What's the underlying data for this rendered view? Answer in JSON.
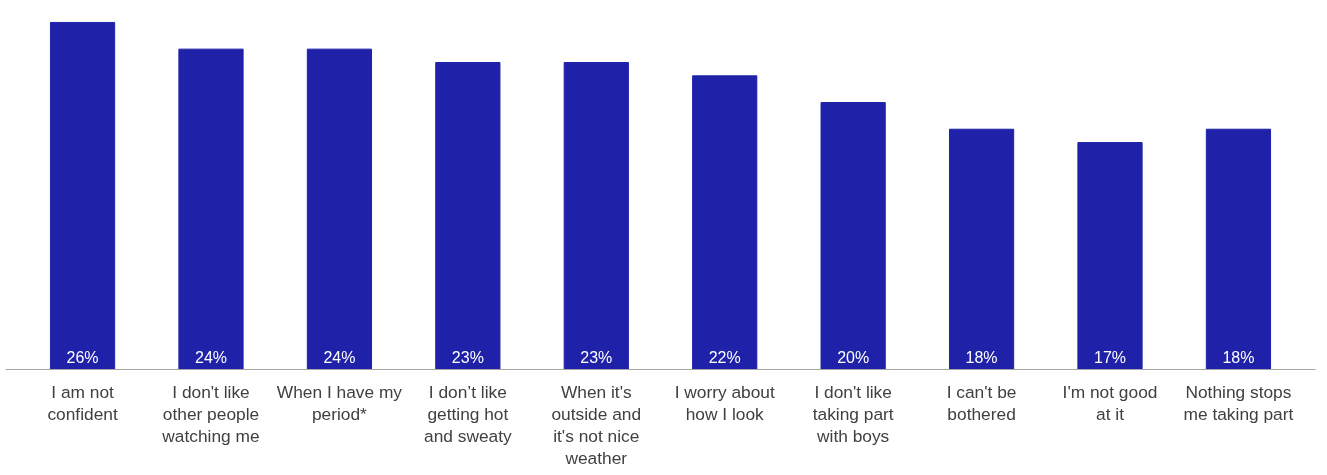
{
  "chart_data": {
    "type": "bar",
    "categories": [
      "I am not confident",
      "I don't like other people watching me",
      "When I have my period*",
      "I don’t like getting hot and sweaty",
      "When it's outside and it's not nice weather",
      "I worry about how I look",
      "I don't like taking part with boys",
      "I can't be bothered",
      "I'm not good at it",
      "Nothing stops me taking part"
    ],
    "values": [
      26,
      24,
      24,
      23,
      23,
      22,
      20,
      18,
      17,
      18
    ],
    "value_labels": [
      "26%",
      "24%",
      "24%",
      "23%",
      "23%",
      "22%",
      "20%",
      "18%",
      "17%",
      "18%"
    ],
    "color": "#1f22a8",
    "grid": false
  }
}
